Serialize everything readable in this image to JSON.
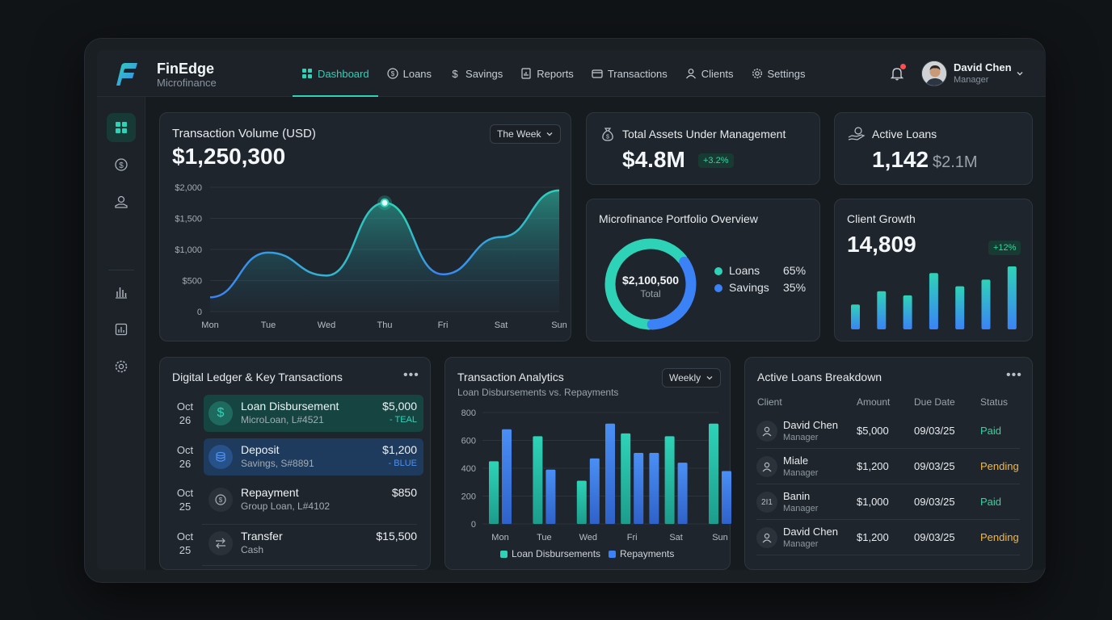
{
  "brand": {
    "name": "FinEdge",
    "subtitle": "Microfinance"
  },
  "nav": [
    {
      "label": "Dashboard",
      "icon": "grid-icon",
      "active": true
    },
    {
      "label": "Loans",
      "icon": "dollar-circle-icon"
    },
    {
      "label": "Savings",
      "icon": "dollar-icon"
    },
    {
      "label": "Reports",
      "icon": "report-icon"
    },
    {
      "label": "Transactions",
      "icon": "card-icon"
    },
    {
      "label": "Clients",
      "icon": "user-icon"
    },
    {
      "label": "Settings",
      "icon": "gear-icon"
    }
  ],
  "user": {
    "name": "David Chen",
    "role": "Manager"
  },
  "colors": {
    "accent": "#2ed3b7",
    "blue": "#3b82f6",
    "green": "#38d39f",
    "pending": "#f5b841"
  },
  "volume": {
    "title": "Transaction Volume (USD)",
    "total": "$1,250,300",
    "range": "The Week"
  },
  "assets": {
    "title": "Total Assets Under Management",
    "value": "$4.8M",
    "change": "+3.2%"
  },
  "active_loans": {
    "title": "Active Loans",
    "count": "1,142",
    "amount": "$2.1M"
  },
  "portfolio": {
    "title": "Microfinance Portfolio Overview",
    "center_value": "$2,100,500",
    "center_label": "Total",
    "items": [
      {
        "label": "Loans",
        "pct": "65%"
      },
      {
        "label": "Savings",
        "pct": "35%"
      }
    ]
  },
  "client_growth": {
    "title": "Client Growth",
    "value": "14,809",
    "change": "+12%"
  },
  "ledger": {
    "title": "Digital Ledger & Key Transactions",
    "rows": [
      {
        "month": "Oct",
        "day": "26",
        "title": "Loan Disbursement",
        "sub": "MicroLoan, L#4521",
        "amount": "$5,000",
        "tag": "- TEAL"
      },
      {
        "month": "Oct",
        "day": "26",
        "title": "Deposit",
        "sub": "Savings, S#8891",
        "amount": "$1,200",
        "tag": "- BLUE"
      },
      {
        "month": "Oct",
        "day": "25",
        "title": "Repayment",
        "sub": "Group Loan, L#4102",
        "amount": "$850",
        "tag": ""
      },
      {
        "month": "Oct",
        "day": "25",
        "title": "Transfer",
        "sub": "Cash",
        "amount": "$15,500",
        "tag": ""
      }
    ]
  },
  "analytics": {
    "title": "Transaction Analytics",
    "subtitle": "Loan Disbursements vs. Repayments",
    "range": "Weekly"
  },
  "loans_breakdown": {
    "title": "Active Loans Breakdown",
    "headers": [
      "Client",
      "Amount",
      "Due Date",
      "Status"
    ],
    "rows": [
      {
        "initials": "",
        "name": "David Chen",
        "role": "Manager",
        "amount": "$5,000",
        "due": "09/03/25",
        "status": "Paid"
      },
      {
        "initials": "",
        "name": "Miale",
        "role": "Manager",
        "amount": "$1,200",
        "due": "09/03/25",
        "status": "Pending"
      },
      {
        "initials": "2I1",
        "name": "Banin",
        "role": "Manager",
        "amount": "$1,000",
        "due": "09/03/25",
        "status": "Paid"
      },
      {
        "initials": "",
        "name": "David Chen",
        "role": "Manager",
        "amount": "$1,200",
        "due": "09/03/25",
        "status": "Pending"
      }
    ]
  },
  "chart_data": [
    {
      "type": "area",
      "title": "Transaction Volume (USD)",
      "categories": [
        "Mon",
        "Tue",
        "Wed",
        "Thu",
        "Fri",
        "Sat",
        "Sun"
      ],
      "y_ticks": [
        "$2,000",
        "$1,500",
        "$1,000",
        "$500",
        "0"
      ],
      "ylim": [
        0,
        2000
      ],
      "values": [
        230,
        950,
        580,
        1750,
        600,
        1200,
        1950
      ],
      "highlight": "Thu"
    },
    {
      "type": "pie",
      "title": "Microfinance Portfolio Overview",
      "labels": [
        "Loans",
        "Savings"
      ],
      "values": [
        65,
        35
      ]
    },
    {
      "type": "bar",
      "title": "Client Growth",
      "values": [
        30,
        46,
        41,
        68,
        52,
        60,
        76
      ]
    },
    {
      "type": "bar",
      "title": "Transaction Analytics",
      "categories": [
        "Mon",
        "Tue",
        "Wed",
        "Fri",
        "Sat",
        "Sun"
      ],
      "y_ticks": [
        "800",
        "600",
        "400",
        "200",
        "0"
      ],
      "ylim": [
        0,
        800
      ],
      "series": [
        {
          "name": "Loan Disbursements",
          "values": [
            450,
            630,
            310,
            650,
            630,
            720
          ],
          "color": "#2ed3b7"
        },
        {
          "name": "Repayments",
          "values": [
            680,
            390,
            470,
            510,
            440,
            380
          ],
          "color": "#3b82f6"
        }
      ],
      "extra_bar": {
        "between": "Wed",
        "series": "Repayments",
        "value": 720
      },
      "extra_bar2": {
        "between": "Fri",
        "series": "Repayments",
        "value": 510
      }
    }
  ]
}
